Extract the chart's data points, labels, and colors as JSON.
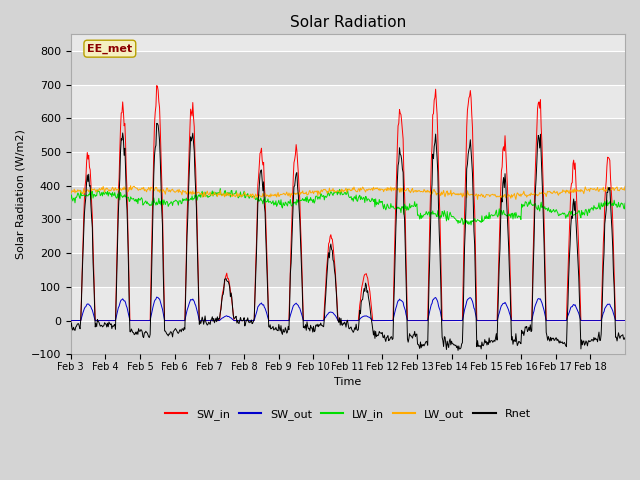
{
  "title": "Solar Radiation",
  "xlabel": "Time",
  "ylabel": "Solar Radiation (W/m2)",
  "ylim": [
    -100,
    850
  ],
  "yticks": [
    -100,
    0,
    100,
    200,
    300,
    400,
    500,
    600,
    700,
    800
  ],
  "site_label": "EE_met",
  "days": [
    "Feb 3",
    "Feb 4",
    "Feb 5",
    "Feb 6",
    "Feb 7",
    "Feb 8",
    "Feb 9",
    "Feb 10",
    "Feb 11",
    "Feb 12",
    "Feb 13",
    "Feb 14",
    "Feb 15",
    "Feb 16",
    "Feb 17",
    "Feb 18"
  ],
  "n_points_per_day": 48,
  "colors": {
    "SW_in": "#ff0000",
    "SW_out": "#0000cc",
    "LW_in": "#00dd00",
    "LW_out": "#ffaa00",
    "Rnet": "#000000"
  },
  "legend_labels": [
    "SW_in",
    "SW_out",
    "LW_in",
    "LW_out",
    "Rnet"
  ],
  "fig_bg_color": "#d4d4d4",
  "axes_bg": "#e8e8e8",
  "band_colors": [
    "#d8d8d8",
    "#e8e8e8"
  ],
  "grid_color": "#ffffff",
  "title_fontsize": 11,
  "label_fontsize": 8,
  "tick_fontsize": 8
}
